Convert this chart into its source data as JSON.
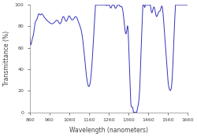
{
  "xlabel": "Wavelength (nanometers)",
  "ylabel": "Transmittance (%)",
  "xlim": [
    860,
    1660
  ],
  "ylim": [
    0,
    100
  ],
  "xticks": [
    860,
    960,
    1060,
    1160,
    1260,
    1360,
    1460,
    1560,
    1660
  ],
  "yticks": [
    0,
    20,
    40,
    60,
    80,
    100
  ],
  "line_color": "#3333bb",
  "linewidth": 0.7,
  "background_color": "#ffffff"
}
